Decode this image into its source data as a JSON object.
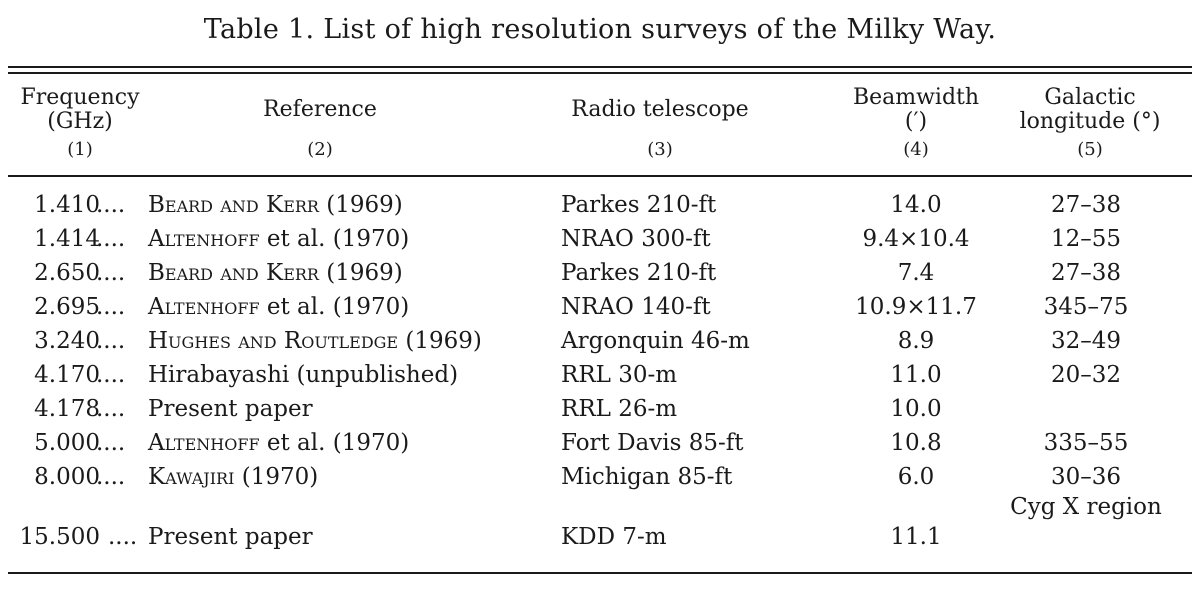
{
  "caption": "Table 1.  List of high resolution surveys of the Milky Way.",
  "headers": [
    {
      "lines": [
        "Frequency",
        "(GHz)"
      ],
      "num": "(1)"
    },
    {
      "lines": [
        "Reference"
      ],
      "num": "(2)"
    },
    {
      "lines": [
        "Radio telescope"
      ],
      "num": "(3)"
    },
    {
      "lines": [
        "Beamwidth",
        "(′)"
      ],
      "num": "(4)"
    },
    {
      "lines": [
        "Galactic",
        "longitude (°)"
      ],
      "num": "(5)"
    }
  ],
  "rows": [
    {
      "freq": "1.410",
      "ref_sc": "Beard and Kerr",
      "ref_plain": " (1969)",
      "telescope": "Parkes 210-ft",
      "beam": "14.0",
      "lon": "27–38"
    },
    {
      "freq": "1.414",
      "ref_sc": "Altenhoff",
      "ref_plain": " et al. (1970)",
      "telescope": "NRAO 300-ft",
      "beam": "9.4×10.4",
      "lon": "12–55"
    },
    {
      "freq": "2.650",
      "ref_sc": "Beard and Kerr",
      "ref_plain": " (1969)",
      "telescope": "Parkes 210-ft",
      "beam": "7.4",
      "lon": "27–38"
    },
    {
      "freq": "2.695",
      "ref_sc": "Altenhoff",
      "ref_plain": " et al. (1970)",
      "telescope": "NRAO 140-ft",
      "beam": "10.9×11.7",
      "lon": "345–75"
    },
    {
      "freq": "3.240",
      "ref_sc": "Hughes and Routledge",
      "ref_plain": " (1969)",
      "telescope": "Argonquin 46-m",
      "beam": "8.9",
      "lon": "32–49"
    },
    {
      "freq": "4.170",
      "ref_sc": "",
      "ref_plain": "Hirabayashi (unpublished)",
      "telescope": "RRL 30-m",
      "beam": "11.0",
      "lon": "20–32"
    },
    {
      "freq": "4.178",
      "ref_sc": "",
      "ref_plain": "Present paper",
      "telescope": "RRL 26-m",
      "beam": "10.0",
      "lon": ""
    },
    {
      "freq": "5.000",
      "ref_sc": "Altenhoff",
      "ref_plain": " et al. (1970)",
      "telescope": "Fort Davis 85-ft",
      "beam": "10.8",
      "lon": "335–55"
    },
    {
      "freq": "8.000",
      "ref_sc": "Kawajiri",
      "ref_plain": " (1970)",
      "telescope": "Michigan 85-ft",
      "beam": "6.0",
      "lon": "30–36"
    },
    {
      "freq": "15.500",
      "ref_sc": "",
      "ref_plain": "Present paper",
      "telescope": "KDD 7-m",
      "beam": "11.1",
      "lon": "Cyg X region"
    }
  ],
  "dots": "...."
}
